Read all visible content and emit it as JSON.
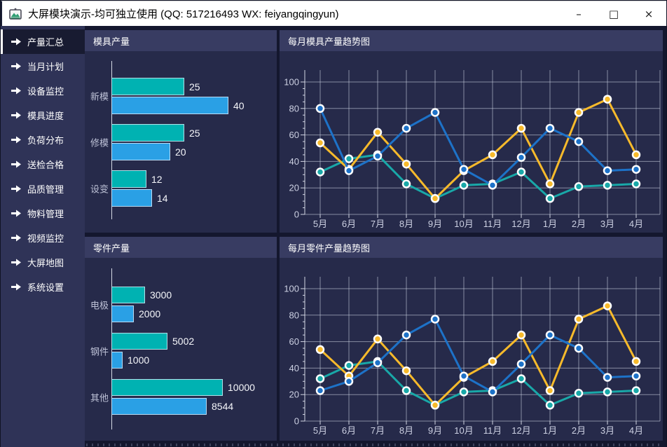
{
  "window": {
    "title": "大屏模块演示-均可独立使用 (QQ: 517216493  WX: feiyangqingyun)",
    "controls": {
      "minimize": "–",
      "maximize": "□",
      "close": "×"
    }
  },
  "sidebar": {
    "items": [
      {
        "key": "production-summary",
        "label": "产量汇总",
        "active": true
      },
      {
        "key": "monthly-plan",
        "label": "当月计划",
        "active": false
      },
      {
        "key": "device-monitor",
        "label": "设备监控",
        "active": false
      },
      {
        "key": "mold-progress",
        "label": "模具进度",
        "active": false
      },
      {
        "key": "load-distribution",
        "label": "负荷分布",
        "active": false
      },
      {
        "key": "inspection-pass",
        "label": "送检合格",
        "active": false
      },
      {
        "key": "quality-management",
        "label": "品质管理",
        "active": false
      },
      {
        "key": "material-management",
        "label": "物料管理",
        "active": false
      },
      {
        "key": "video-monitor",
        "label": "视频监控",
        "active": false
      },
      {
        "key": "big-screen-map",
        "label": "大屏地图",
        "active": false
      },
      {
        "key": "system-settings",
        "label": "系统设置",
        "active": false
      }
    ]
  },
  "colors": {
    "bar_teal": "#00b2b2",
    "bar_blue": "#2aa0e5",
    "line_blue": "#1d72c8",
    "line_teal": "#19a8a8",
    "line_yellow": "#f7ba2b",
    "panel_body": "#262a4a",
    "panel_header": "#383c62",
    "sidebar": "#2f3357",
    "background": "#14172e"
  },
  "chart_data": [
    {
      "id": "mold_bar",
      "type": "bar",
      "orientation": "horizontal",
      "title": "模具产量",
      "categories": [
        "新模",
        "修模",
        "设变"
      ],
      "series": [
        {
          "name": "teal-series",
          "color": "#00b2b2",
          "values": [
            25,
            25,
            12
          ]
        },
        {
          "name": "blue-series",
          "color": "#2aa0e5",
          "values": [
            40,
            20,
            14
          ]
        }
      ],
      "xlim": [
        0,
        42
      ],
      "grid": false,
      "legend": "none"
    },
    {
      "id": "part_bar",
      "type": "bar",
      "orientation": "horizontal",
      "title": "零件产量",
      "categories": [
        "电极",
        "钢件",
        "其他"
      ],
      "series": [
        {
          "name": "teal-series",
          "color": "#00b2b2",
          "values": [
            3000,
            5002,
            10000
          ]
        },
        {
          "name": "blue-series",
          "color": "#2aa0e5",
          "values": [
            2000,
            1000,
            8544
          ]
        }
      ],
      "xlim": [
        0,
        10500
      ],
      "grid": false,
      "legend": "none"
    },
    {
      "id": "mold_trend",
      "type": "line",
      "title": "每月模具产量趋势图",
      "x": [
        "5月",
        "6月",
        "7月",
        "8月",
        "9月",
        "10月",
        "11月",
        "12月",
        "1月",
        "2月",
        "3月",
        "4月"
      ],
      "ylim": [
        0,
        100
      ],
      "yticks": [
        0,
        20,
        40,
        60,
        80,
        100
      ],
      "grid": true,
      "legend": "none",
      "series": [
        {
          "name": "teal-series",
          "color": "#19a8a8",
          "values": [
            32,
            42,
            45,
            23,
            12,
            22,
            23,
            32,
            12,
            21,
            22,
            23
          ]
        },
        {
          "name": "yellow-series",
          "color": "#f7ba2b",
          "values": [
            54,
            34,
            62,
            38,
            12,
            33,
            45,
            65,
            23,
            77,
            87,
            45
          ]
        },
        {
          "name": "blue-series",
          "color": "#1d72c8",
          "values": [
            80,
            33,
            44,
            65,
            77,
            34,
            22,
            43,
            65,
            55,
            33,
            34
          ]
        }
      ]
    },
    {
      "id": "part_trend",
      "type": "line",
      "title": "每月零件产量趋势图",
      "x": [
        "5月",
        "6月",
        "7月",
        "8月",
        "9月",
        "10月",
        "11月",
        "12月",
        "1月",
        "2月",
        "3月",
        "4月"
      ],
      "ylim": [
        0,
        100
      ],
      "yticks": [
        0,
        20,
        40,
        60,
        80,
        100
      ],
      "grid": true,
      "legend": "none",
      "series": [
        {
          "name": "teal-series",
          "color": "#19a8a8",
          "values": [
            32,
            42,
            45,
            23,
            12,
            22,
            23,
            32,
            12,
            21,
            22,
            23
          ]
        },
        {
          "name": "yellow-series",
          "color": "#f7ba2b",
          "values": [
            54,
            34,
            62,
            38,
            12,
            33,
            45,
            65,
            23,
            77,
            87,
            45
          ]
        },
        {
          "name": "blue-series",
          "color": "#1d72c8",
          "values": [
            23,
            30,
            44,
            65,
            77,
            34,
            22,
            43,
            65,
            55,
            33,
            34
          ]
        }
      ]
    }
  ]
}
